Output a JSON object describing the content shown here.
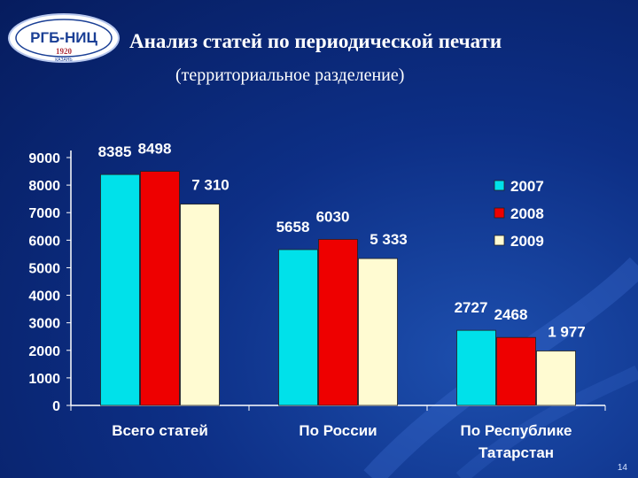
{
  "header": {
    "title": "Анализ статей по периодической печати",
    "subtitle": "(территориальное разделение)",
    "slide_number": "14"
  },
  "logo": {
    "text": "РГБ-НИЦ",
    "year": "1920",
    "city": "КАЗАНЬ"
  },
  "colors": {
    "s2007": "#00e1ea",
    "s2008": "#ee0000",
    "s2009": "#fffbd2"
  },
  "chart_data": {
    "type": "bar",
    "categories": [
      "Всего статей",
      "По России",
      "По Республике Татарстан"
    ],
    "category_lines": [
      [
        "Всего статей"
      ],
      [
        "По России"
      ],
      [
        "По Республике",
        "Татарстан"
      ]
    ],
    "series": [
      {
        "name": "2007",
        "values": [
          8385,
          5658,
          2727
        ],
        "labels": [
          "8385",
          "5658",
          "2727"
        ]
      },
      {
        "name": "2008",
        "values": [
          8498,
          6030,
          2468
        ],
        "labels": [
          "8498",
          "6030",
          "2468"
        ]
      },
      {
        "name": "2009",
        "values": [
          7310,
          5333,
          1977
        ],
        "labels": [
          "7 310",
          "5 333",
          "1 977"
        ]
      }
    ],
    "yticks": [
      "0",
      "1000",
      "2000",
      "3000",
      "4000",
      "5000",
      "6000",
      "7000",
      "8000",
      "9000"
    ],
    "ylim": [
      0,
      9000
    ],
    "legend_position": "right",
    "grid": false
  }
}
